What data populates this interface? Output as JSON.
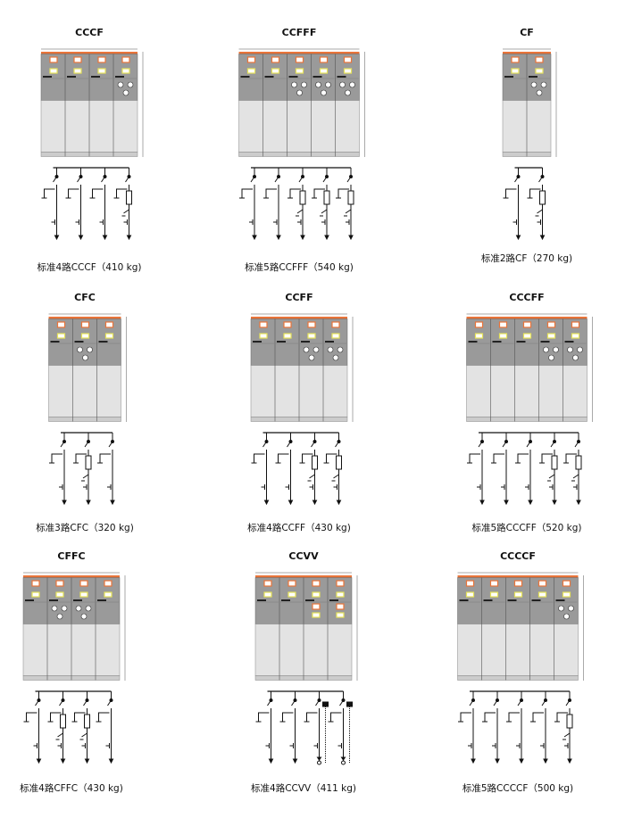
{
  "colors": {
    "cabinet_top": "#9a9a9a",
    "cabinet_bottom": "#e3e3e3",
    "accent_orange": "#e8743a",
    "accent_yellow": "#e6e35a",
    "line": "#111111"
  },
  "configs": [
    {
      "title": "CCCF",
      "units": "CCCF",
      "caption": "标准4路CCCF（410 kg)"
    },
    {
      "title": "CCFFF",
      "units": "CCFFF",
      "caption": "标准5路CCFFF（540 kg)"
    },
    {
      "title": "CF",
      "units": "CF",
      "caption": "标准2路CF（270 kg)"
    },
    {
      "title": "CFC",
      "units": "CFC",
      "caption": "标准3路CFC（320 kg)"
    },
    {
      "title": "CCFF",
      "units": "CCFF",
      "caption": "标准4路CCFF（430 kg)"
    },
    {
      "title": "CCCFF",
      "units": "CCCFF",
      "caption": "标准5路CCCFF（520 kg)"
    },
    {
      "title": "CFFC",
      "units": "CFFC",
      "caption": "标准4路CFFC（430 kg)"
    },
    {
      "title": "CCVV",
      "units": "CCVV",
      "caption": "标准4路CCVV（411 kg)"
    },
    {
      "title": "CCCCF",
      "units": "CCCCF",
      "caption": "标准5路CCCCF（500 kg)"
    }
  ]
}
